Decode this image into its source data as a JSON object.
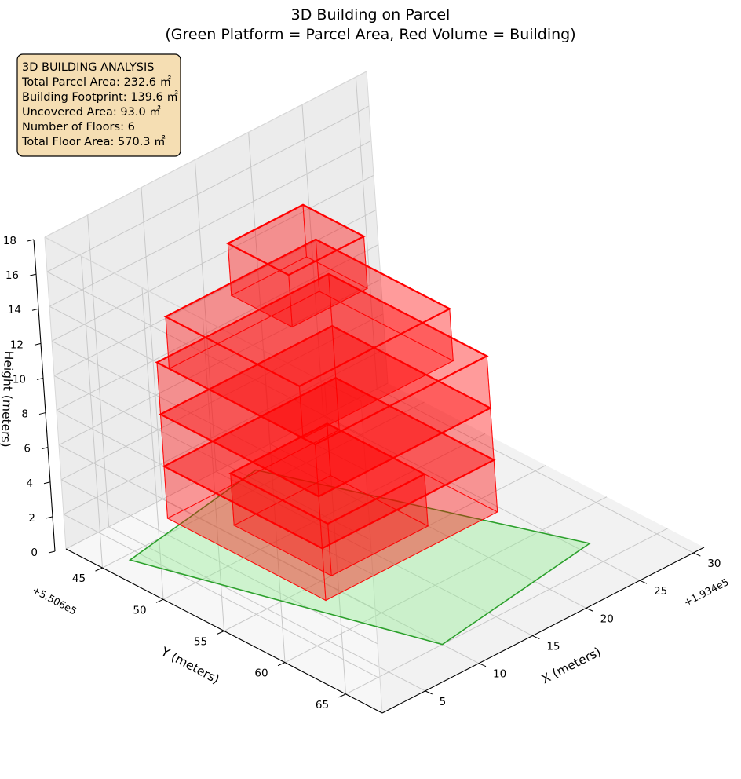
{
  "chart_data": {
    "type": "3d-boxes",
    "title_line1": "3D Building on Parcel",
    "title_line2": "(Green Platform = Parcel Area, Red Volume = Building)",
    "xlabel": "X (meters)",
    "ylabel": "Y (meters)",
    "zlabel": "Height (meters)",
    "x_offset": "+1.934e5",
    "y_offset": "+5.506e5",
    "xlim": [
      1,
      31
    ],
    "ylim": [
      42,
      68
    ],
    "zlim": [
      0,
      18
    ],
    "x_ticks": [
      5,
      10,
      15,
      20,
      25,
      30
    ],
    "y_ticks": [
      45,
      50,
      55,
      60,
      65
    ],
    "z_ticks": [
      0,
      2,
      4,
      6,
      8,
      10,
      12,
      14,
      16,
      18
    ],
    "grid": true,
    "info_box": {
      "placement": "top-left",
      "lines": [
        "3D BUILDING ANALYSIS",
        "Total Parcel Area: 232.6 ㎡",
        "Building Footprint: 139.6 ㎡",
        "Uncovered Area: 93.0 ㎡",
        "Number of Floors: 6",
        "Total Floor Area: 570.3 ㎡"
      ]
    },
    "parcel": {
      "color": "#2ca02c",
      "fill": "#90ee90",
      "corners": [
        [
          3,
          45.5
        ],
        [
          10,
          65
        ],
        [
          26,
          63
        ],
        [
          17,
          43.5
        ]
      ],
      "z": 0
    },
    "building_color": "#ff0000",
    "building": [
      {
        "x": [
          11,
          20
        ],
        "y": [
          47,
          55
        ],
        "z": [
          0,
          3
        ]
      },
      {
        "x": [
          4,
          20
        ],
        "y": [
          48,
          61
        ],
        "z": [
          3,
          6
        ]
      },
      {
        "x": [
          4,
          20
        ],
        "y": [
          48,
          61
        ],
        "z": [
          6,
          9
        ]
      },
      {
        "x": [
          4,
          20
        ],
        "y": [
          48,
          61
        ],
        "z": [
          9,
          12
        ]
      },
      {
        "x": [
          4,
          18
        ],
        "y": [
          49,
          60
        ],
        "z": [
          12,
          15
        ]
      },
      {
        "x": [
          9,
          16
        ],
        "y": [
          50,
          55
        ],
        "z": [
          15,
          18
        ]
      }
    ]
  }
}
